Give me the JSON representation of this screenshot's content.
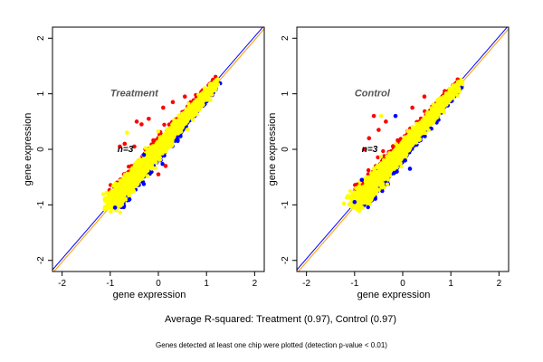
{
  "caption": "Average R-squared: Treatment (0.97), Control (0.97)",
  "footnote": "Genes detected at least one chip were plotted (detection p-value < 0.01)",
  "colors": {
    "red": "#ff0000",
    "blue": "#0000ff",
    "yellow": "#ffff00",
    "diag_a": "#0000ff",
    "diag_b": "#ff9900",
    "axis": "#000000"
  },
  "chart_data": [
    {
      "type": "scatter",
      "title": "Treatment",
      "n_label": "n=3",
      "xlabel": "gene expression",
      "ylabel": "gene expression",
      "xlim": [
        -2.2,
        2.2
      ],
      "ylim": [
        -2.2,
        2.2
      ],
      "xticks": [
        -2,
        -1,
        0,
        1,
        2
      ],
      "yticks": [
        -2,
        -1,
        0,
        1,
        2
      ],
      "cloud": {
        "xmin": -1.05,
        "xmax": 1.2,
        "ymin": -1.05,
        "ymax": 1.2
      },
      "outliers": [
        {
          "x": -0.8,
          "y": 0.05,
          "color": "red"
        },
        {
          "x": -0.65,
          "y": 0.3,
          "color": "yellow"
        },
        {
          "x": -0.7,
          "y": 0.1,
          "color": "red"
        },
        {
          "x": -0.45,
          "y": 0.5,
          "color": "red"
        },
        {
          "x": -0.35,
          "y": 0.45,
          "color": "red"
        },
        {
          "x": -0.2,
          "y": 0.55,
          "color": "red"
        },
        {
          "x": -0.5,
          "y": 0.05,
          "color": "red"
        },
        {
          "x": 0.1,
          "y": 0.75,
          "color": "red"
        },
        {
          "x": 0.3,
          "y": 0.85,
          "color": "red"
        },
        {
          "x": 0.55,
          "y": 0.95,
          "color": "red"
        },
        {
          "x": -0.3,
          "y": -0.1,
          "color": "blue"
        },
        {
          "x": -0.1,
          "y": 0.15,
          "color": "red"
        },
        {
          "x": 0.15,
          "y": -0.3,
          "color": "red"
        },
        {
          "x": 0.0,
          "y": -0.45,
          "color": "red"
        },
        {
          "x": -0.6,
          "y": -0.9,
          "color": "blue"
        },
        {
          "x": -0.9,
          "y": -1.05,
          "color": "blue"
        }
      ]
    },
    {
      "type": "scatter",
      "title": "Control",
      "n_label": "n=3",
      "xlabel": "gene expression",
      "ylabel": "gene expression",
      "xlim": [
        -2.2,
        2.2
      ],
      "ylim": [
        -2.2,
        2.2
      ],
      "xticks": [
        -2,
        -1,
        0,
        1,
        2
      ],
      "yticks": [
        -2,
        -1,
        0,
        1,
        2
      ],
      "cloud": {
        "xmin": -1.05,
        "xmax": 1.2,
        "ymin": -1.05,
        "ymax": 1.2
      },
      "outliers": [
        {
          "x": -0.6,
          "y": 0.6,
          "color": "red"
        },
        {
          "x": -0.45,
          "y": 0.6,
          "color": "yellow"
        },
        {
          "x": -0.35,
          "y": 0.5,
          "color": "red"
        },
        {
          "x": -0.7,
          "y": 0.2,
          "color": "red"
        },
        {
          "x": -0.5,
          "y": 0.35,
          "color": "red"
        },
        {
          "x": -0.15,
          "y": 0.6,
          "color": "blue"
        },
        {
          "x": 0.2,
          "y": 0.75,
          "color": "red"
        },
        {
          "x": 0.45,
          "y": 0.95,
          "color": "red"
        },
        {
          "x": 0.05,
          "y": -0.2,
          "color": "blue"
        },
        {
          "x": 0.15,
          "y": -0.35,
          "color": "blue"
        },
        {
          "x": -0.85,
          "y": -0.55,
          "color": "blue"
        },
        {
          "x": -1.0,
          "y": -0.95,
          "color": "blue"
        },
        {
          "x": -0.8,
          "y": 0.0,
          "color": "red"
        },
        {
          "x": -0.2,
          "y": 0.05,
          "color": "red"
        }
      ]
    }
  ]
}
